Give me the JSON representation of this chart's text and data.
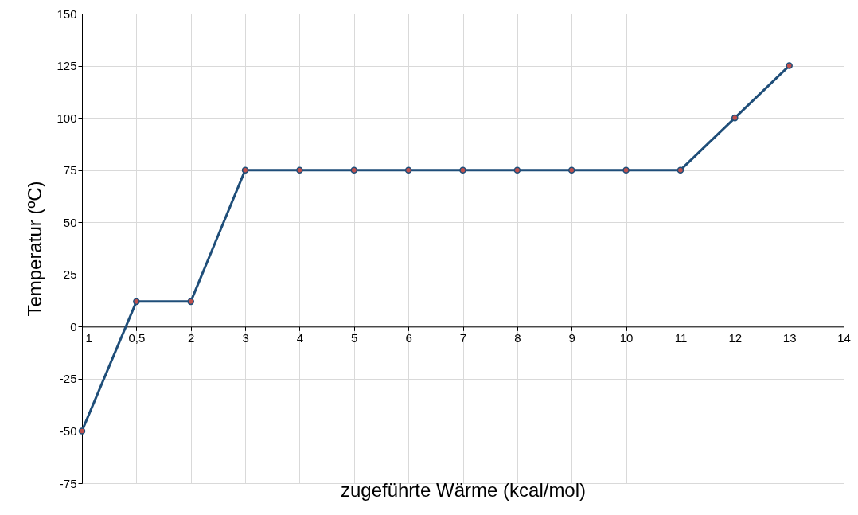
{
  "chart_data": {
    "type": "line",
    "xlabel": "zugeführte Wärme (kcal/mol)",
    "ylabel": "Temperatur (ºC)",
    "categories": [
      "1",
      "0,5",
      "2",
      "3",
      "4",
      "5",
      "6",
      "7",
      "8",
      "9",
      "10",
      "11",
      "12",
      "13",
      "14"
    ],
    "series": [
      {
        "color": "#1f4e79",
        "values": [
          -50,
          12,
          12,
          75,
          75,
          75,
          75,
          75,
          75,
          75,
          75,
          75,
          100,
          125,
          null
        ]
      }
    ],
    "ylim": [
      -75,
      150
    ],
    "yticks": [
      -75,
      -50,
      -25,
      0,
      25,
      50,
      75,
      100,
      125,
      150
    ],
    "grid": true,
    "marker": "circle",
    "line_style": "solid"
  }
}
